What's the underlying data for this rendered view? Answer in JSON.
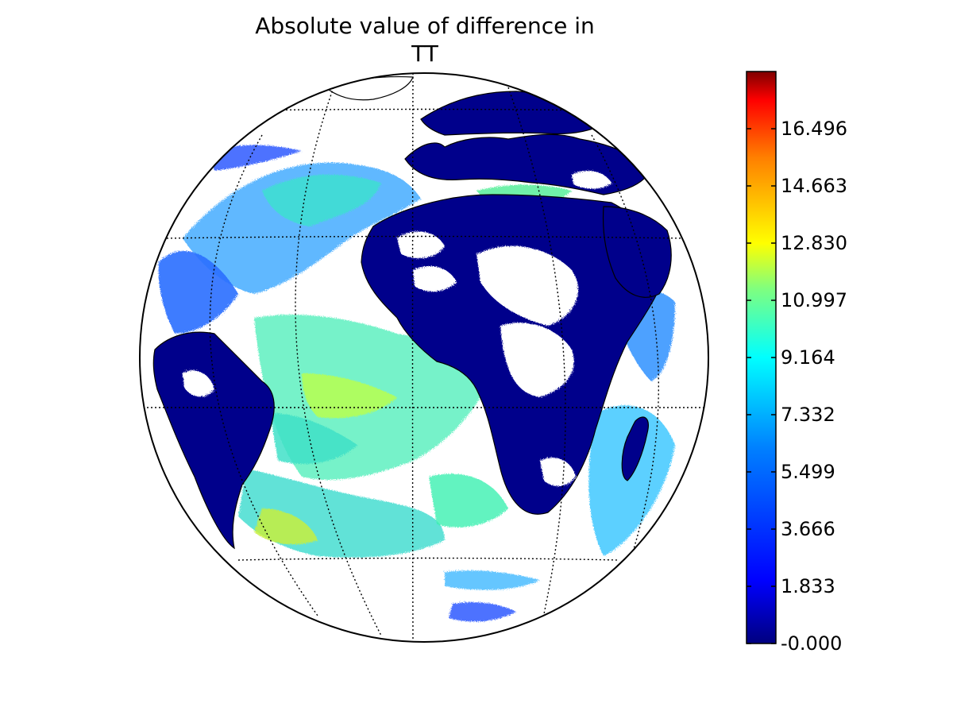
{
  "figure": {
    "title_line1": "Absolute value of difference in",
    "title_line2": "TT"
  },
  "colorbar": {
    "tick_labels": [
      "16.496",
      "14.663",
      "12.830",
      "10.997",
      "9.164",
      "7.332",
      "5.499",
      "3.666",
      "1.833",
      "-0.000"
    ],
    "tick_values": [
      16.496,
      14.663,
      12.83,
      10.997,
      9.164,
      7.332,
      5.499,
      3.666,
      1.833,
      0.0
    ],
    "range": [
      0.0,
      18.329
    ],
    "colormap": "jet",
    "colors": [
      "#00007f",
      "#0000ff",
      "#007fff",
      "#00ffff",
      "#7fff7f",
      "#ffff00",
      "#ff7f00",
      "#ff0000",
      "#7f0000"
    ]
  },
  "map": {
    "projection": "orthographic",
    "land_color": "#00008b",
    "nodata_color": "#ffffff",
    "graticule_style": "dotted"
  }
}
